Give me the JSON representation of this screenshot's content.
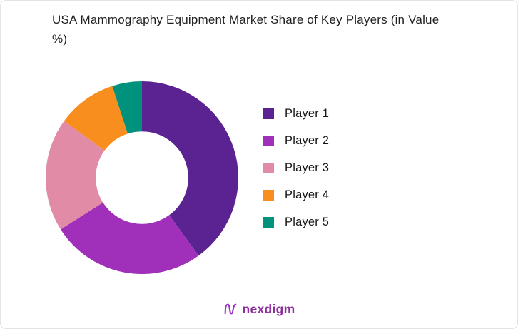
{
  "header": {
    "title": "USA Mammography Equipment Market Share of Key Players (in Value %)"
  },
  "chart_data": {
    "type": "pie",
    "subtype": "donut",
    "title": "USA Mammography Equipment Market Share of Key Players (in Value %)",
    "categories": [
      "Player 1",
      "Player 2",
      "Player 3",
      "Player 4",
      "Player 5"
    ],
    "values": [
      40,
      26,
      19,
      10,
      5
    ],
    "unit": "percent",
    "colors": [
      "#5b2291",
      "#a02fb9",
      "#e18ba6",
      "#f78e1e",
      "#00927c"
    ],
    "inner_radius_ratio": 0.48,
    "start_angle_deg": 0,
    "direction": "clockwise",
    "legend_position": "right",
    "data_labels": "none"
  },
  "footer": {
    "brand": "nexdigm",
    "brand_color": "#8f2d9e",
    "icon_color": "#9b2fc4"
  }
}
